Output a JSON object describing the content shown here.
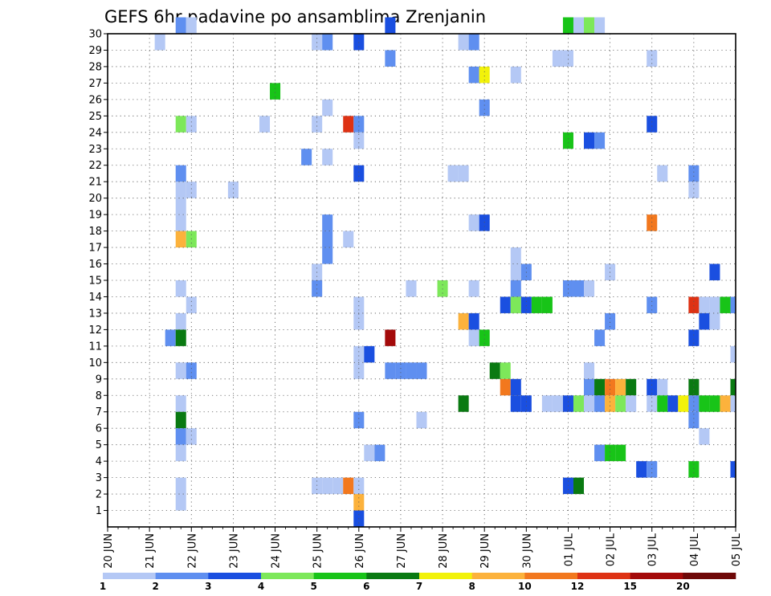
{
  "chart_data": {
    "type": "heatmap",
    "title": "GEFS 6hr padavine po ansamblima Zrenjanin",
    "xlabel": "",
    "ylabel": "",
    "x_ticks": [
      "20 JUN",
      "21 JUN",
      "22 JUN",
      "23 JUN",
      "24 JUN",
      "25 JUN",
      "26 JUN",
      "27 JUN",
      "28 JUN",
      "29 JUN",
      "30 JUN",
      "01 JUL",
      "02 JUL",
      "03 JUL",
      "04 JUL",
      "05 JUL"
    ],
    "y_ticks": [
      1,
      2,
      3,
      4,
      5,
      6,
      7,
      8,
      9,
      10,
      11,
      12,
      13,
      14,
      15,
      16,
      17,
      18,
      19,
      20,
      21,
      22,
      23,
      24,
      25,
      26,
      27,
      28,
      29,
      30
    ],
    "xlim_steps": [
      0,
      60
    ],
    "ylim": [
      0,
      30
    ],
    "grid": true,
    "legend": {
      "placement": "bottom",
      "thresholds": [
        1,
        2,
        3,
        4,
        5,
        6,
        7,
        8,
        10,
        12,
        15,
        20
      ],
      "colors": [
        "#b4c8f5",
        "#5f8ff0",
        "#1a4fe0",
        "#7de85a",
        "#18c418",
        "#0a7a12",
        "#f2f20a",
        "#fcb23c",
        "#f2781e",
        "#de3214",
        "#a40a0a",
        "#6e0808"
      ]
    },
    "cells_note": "each cell: [step_index (6h steps from 20 JUN 00), member, level_index 0-11]",
    "cells": [
      [
        7,
        30,
        1
      ],
      [
        8,
        30,
        0
      ],
      [
        27,
        30,
        2
      ],
      [
        44,
        30,
        4
      ],
      [
        45,
        30,
        0
      ],
      [
        46,
        30,
        3
      ],
      [
        47,
        30,
        0
      ],
      [
        5,
        29,
        0
      ],
      [
        20,
        29,
        0
      ],
      [
        21,
        29,
        1
      ],
      [
        24,
        29,
        2
      ],
      [
        34,
        29,
        0
      ],
      [
        35,
        29,
        1
      ],
      [
        27,
        28,
        1
      ],
      [
        43,
        28,
        0
      ],
      [
        44,
        28,
        0
      ],
      [
        52,
        28,
        0
      ],
      [
        35,
        27,
        1
      ],
      [
        36,
        27,
        6
      ],
      [
        39,
        27,
        0
      ],
      [
        16,
        26,
        4
      ],
      [
        21,
        25,
        0
      ],
      [
        36,
        25,
        1
      ],
      [
        7,
        24,
        3
      ],
      [
        8,
        24,
        0
      ],
      [
        15,
        24,
        0
      ],
      [
        20,
        24,
        0
      ],
      [
        23,
        24,
        9
      ],
      [
        24,
        24,
        1
      ],
      [
        52,
        24,
        2
      ],
      [
        24,
        23,
        0
      ],
      [
        44,
        23,
        4
      ],
      [
        46,
        23,
        2
      ],
      [
        47,
        23,
        1
      ],
      [
        19,
        22,
        1
      ],
      [
        21,
        22,
        0
      ],
      [
        7,
        21,
        1
      ],
      [
        24,
        21,
        2
      ],
      [
        33,
        21,
        0
      ],
      [
        34,
        21,
        0
      ],
      [
        53,
        21,
        0
      ],
      [
        56,
        21,
        1
      ],
      [
        7,
        20,
        0
      ],
      [
        8,
        20,
        0
      ],
      [
        12,
        20,
        0
      ],
      [
        56,
        20,
        0
      ],
      [
        7,
        19,
        0
      ],
      [
        7,
        18,
        0
      ],
      [
        21,
        18,
        1
      ],
      [
        35,
        18,
        0
      ],
      [
        36,
        18,
        2
      ],
      [
        52,
        18,
        8
      ],
      [
        7,
        17,
        7
      ],
      [
        8,
        17,
        3
      ],
      [
        21,
        17,
        1
      ],
      [
        23,
        17,
        0
      ],
      [
        21,
        16,
        1
      ],
      [
        39,
        16,
        0
      ],
      [
        20,
        15,
        0
      ],
      [
        39,
        15,
        0
      ],
      [
        40,
        15,
        1
      ],
      [
        48,
        15,
        0
      ],
      [
        58,
        15,
        2
      ],
      [
        7,
        14,
        0
      ],
      [
        20,
        14,
        1
      ],
      [
        29,
        14,
        0
      ],
      [
        32,
        14,
        3
      ],
      [
        35,
        14,
        0
      ],
      [
        39,
        14,
        1
      ],
      [
        44,
        14,
        1
      ],
      [
        45,
        14,
        1
      ],
      [
        46,
        14,
        0
      ],
      [
        8,
        13,
        0
      ],
      [
        24,
        13,
        0
      ],
      [
        38,
        13,
        2
      ],
      [
        39,
        13,
        3
      ],
      [
        40,
        13,
        2
      ],
      [
        41,
        13,
        4
      ],
      [
        42,
        13,
        4
      ],
      [
        52,
        13,
        1
      ],
      [
        56,
        13,
        9
      ],
      [
        57,
        13,
        0
      ],
      [
        58,
        13,
        0
      ],
      [
        59,
        13,
        4
      ],
      [
        60,
        13,
        1
      ],
      [
        7,
        12,
        0
      ],
      [
        24,
        12,
        0
      ],
      [
        34,
        12,
        7
      ],
      [
        35,
        12,
        2
      ],
      [
        48,
        12,
        1
      ],
      [
        57,
        12,
        2
      ],
      [
        58,
        12,
        0
      ],
      [
        6,
        11,
        1
      ],
      [
        7,
        11,
        5
      ],
      [
        27,
        11,
        10
      ],
      [
        35,
        11,
        0
      ],
      [
        36,
        11,
        4
      ],
      [
        47,
        11,
        1
      ],
      [
        56,
        11,
        2
      ],
      [
        24,
        10,
        0
      ],
      [
        25,
        10,
        2
      ],
      [
        60,
        10,
        0
      ],
      [
        7,
        9,
        0
      ],
      [
        8,
        9,
        1
      ],
      [
        24,
        9,
        0
      ],
      [
        27,
        9,
        1
      ],
      [
        28,
        9,
        1
      ],
      [
        29,
        9,
        1
      ],
      [
        30,
        9,
        1
      ],
      [
        37,
        9,
        5
      ],
      [
        38,
        9,
        3
      ],
      [
        46,
        9,
        0
      ],
      [
        38,
        8,
        8
      ],
      [
        39,
        8,
        2
      ],
      [
        46,
        8,
        1
      ],
      [
        47,
        8,
        5
      ],
      [
        48,
        8,
        8
      ],
      [
        49,
        8,
        7
      ],
      [
        50,
        8,
        5
      ],
      [
        52,
        8,
        2
      ],
      [
        53,
        8,
        0
      ],
      [
        56,
        8,
        5
      ],
      [
        60,
        8,
        5
      ],
      [
        7,
        7,
        0
      ],
      [
        34,
        7,
        5
      ],
      [
        39,
        7,
        2
      ],
      [
        40,
        7,
        2
      ],
      [
        42,
        7,
        0
      ],
      [
        43,
        7,
        0
      ],
      [
        44,
        7,
        2
      ],
      [
        45,
        7,
        3
      ],
      [
        46,
        7,
        0
      ],
      [
        47,
        7,
        1
      ],
      [
        48,
        7,
        7
      ],
      [
        49,
        7,
        3
      ],
      [
        50,
        7,
        0
      ],
      [
        52,
        7,
        0
      ],
      [
        53,
        7,
        4
      ],
      [
        54,
        7,
        2
      ],
      [
        55,
        7,
        6
      ],
      [
        56,
        7,
        1
      ],
      [
        57,
        7,
        4
      ],
      [
        58,
        7,
        4
      ],
      [
        59,
        7,
        7
      ],
      [
        60,
        7,
        0
      ],
      [
        7,
        6,
        5
      ],
      [
        24,
        6,
        1
      ],
      [
        30,
        6,
        0
      ],
      [
        56,
        6,
        1
      ],
      [
        7,
        5,
        1
      ],
      [
        8,
        5,
        0
      ],
      [
        57,
        5,
        0
      ],
      [
        7,
        4,
        0
      ],
      [
        25,
        4,
        0
      ],
      [
        26,
        4,
        1
      ],
      [
        47,
        4,
        1
      ],
      [
        48,
        4,
        4
      ],
      [
        49,
        4,
        4
      ],
      [
        51,
        3,
        2
      ],
      [
        52,
        3,
        1
      ],
      [
        56,
        3,
        4
      ],
      [
        60,
        3,
        2
      ],
      [
        7,
        2,
        0
      ],
      [
        20,
        2,
        0
      ],
      [
        21,
        2,
        0
      ],
      [
        22,
        2,
        0
      ],
      [
        23,
        2,
        8
      ],
      [
        24,
        2,
        0
      ],
      [
        44,
        2,
        2
      ],
      [
        45,
        2,
        5
      ],
      [
        7,
        1,
        0
      ],
      [
        24,
        1,
        7
      ],
      [
        24,
        0,
        2
      ]
    ]
  }
}
